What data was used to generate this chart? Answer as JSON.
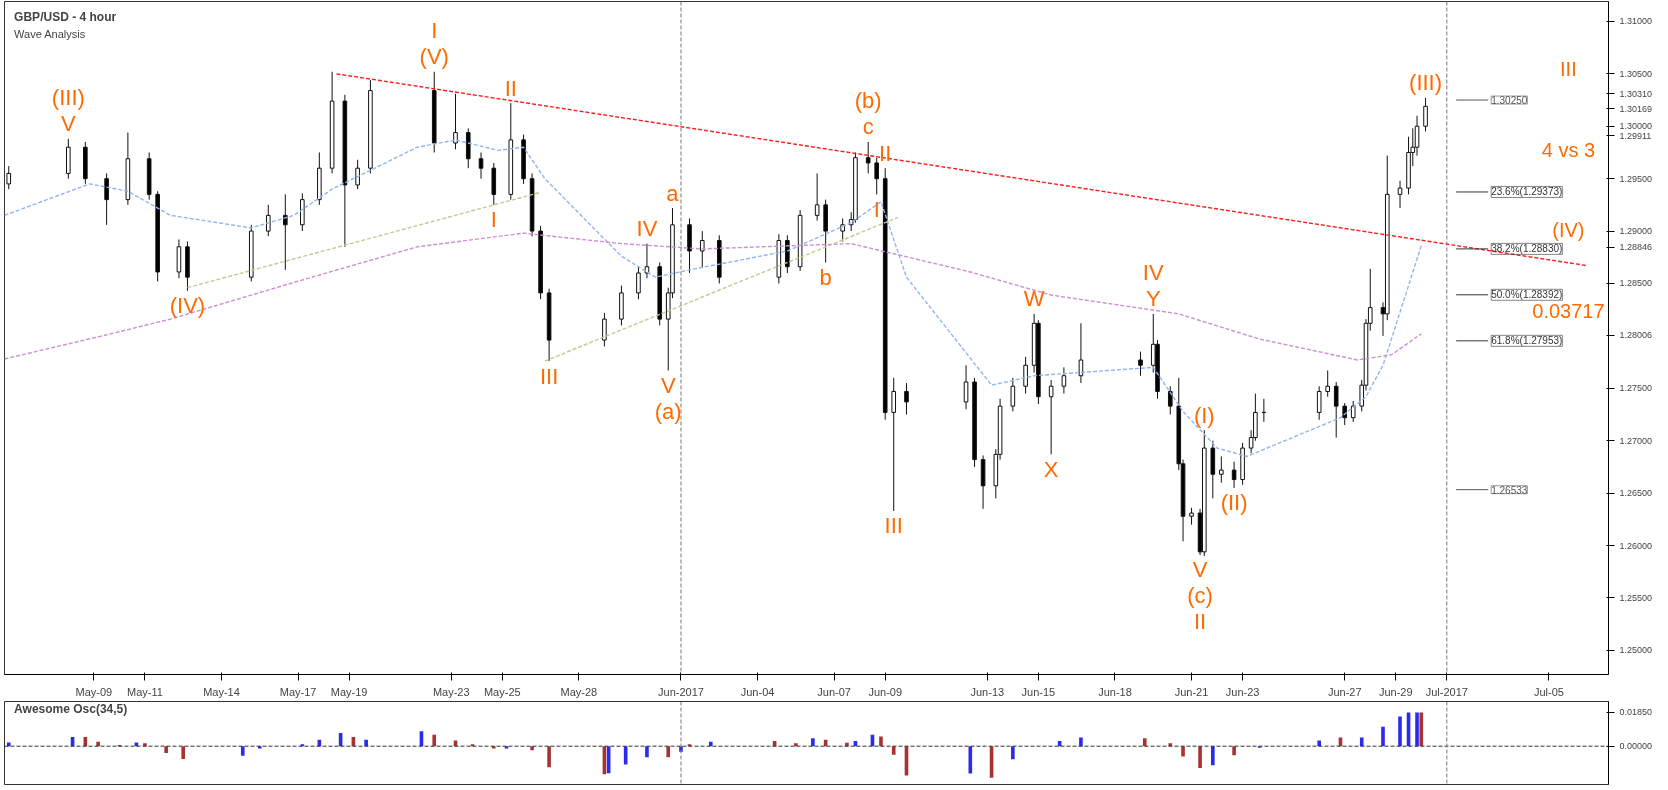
{
  "chart_data": [
    {
      "type": "candlestick",
      "title": "GBP/USD - 4 hour",
      "subtitle": "Wave Analysis",
      "xlim": [
        "2017-05-05T12:00",
        "2017-07-07T08:00"
      ],
      "ylim": [
        1.2477,
        1.3119
      ],
      "xticks": [
        {
          "value": "2017-05-09",
          "label": "May-09"
        },
        {
          "value": "2017-05-11",
          "label": "May-11"
        },
        {
          "value": "2017-05-14",
          "label": "May-14"
        },
        {
          "value": "2017-05-17",
          "label": "May-17"
        },
        {
          "value": "2017-05-19",
          "label": "May-19"
        },
        {
          "value": "2017-05-23",
          "label": "May-23"
        },
        {
          "value": "2017-05-25",
          "label": "May-25"
        },
        {
          "value": "2017-05-28",
          "label": "May-28"
        },
        {
          "value": "2017-06-01",
          "label": "Jun-2017"
        },
        {
          "value": "2017-06-04",
          "label": "Jun-04"
        },
        {
          "value": "2017-06-07",
          "label": "Jun-07"
        },
        {
          "value": "2017-06-09",
          "label": "Jun-09"
        },
        {
          "value": "2017-06-13",
          "label": "Jun-13"
        },
        {
          "value": "2017-06-15",
          "label": "Jun-15"
        },
        {
          "value": "2017-06-18",
          "label": "Jun-18"
        },
        {
          "value": "2017-06-21",
          "label": "Jun-21"
        },
        {
          "value": "2017-06-23",
          "label": "Jun-23"
        },
        {
          "value": "2017-06-27",
          "label": "Jun-27"
        },
        {
          "value": "2017-06-29",
          "label": "Jun-29"
        },
        {
          "value": "2017-07-01",
          "label": "Jul-2017"
        },
        {
          "value": "2017-07-05",
          "label": "Jul-05"
        }
      ],
      "yticks": [
        {
          "value": 1.25,
          "label": "1.25000"
        },
        {
          "value": 1.255,
          "label": "1.25500"
        },
        {
          "value": 1.26,
          "label": "1.26000"
        },
        {
          "value": 1.265,
          "label": "1.26500"
        },
        {
          "value": 1.27,
          "label": "1.27000"
        },
        {
          "value": 1.275,
          "label": "1.27500"
        },
        {
          "value": 1.285,
          "label": "1.28500"
        },
        {
          "value": 1.29,
          "label": "1.29000"
        },
        {
          "value": 1.295,
          "label": "1.29500"
        },
        {
          "value": 1.3,
          "label": "1.30000"
        },
        {
          "value": 1.305,
          "label": "1.30500"
        },
        {
          "value": 1.31,
          "label": "1.31000"
        },
        {
          "value": 1.3031,
          "label": "1.30310"
        },
        {
          "value": 1.30169,
          "label": "1.30169"
        },
        {
          "value": 1.29911,
          "label": "1.29911"
        },
        {
          "value": 1.28846,
          "label": "1.28846"
        },
        {
          "value": 1.28006,
          "label": "1.28006"
        }
      ],
      "x": [
        "2017-05-05T16:00",
        "2017-05-08T00:00",
        "2017-05-08T16:00",
        "2017-05-09T12:00",
        "2017-05-10T08:00",
        "2017-05-11T04:00",
        "2017-05-11T12:00",
        "2017-05-12T08:00",
        "2017-05-12T16:00",
        "2017-05-15T04:00",
        "2017-05-15T20:00",
        "2017-05-16T12:00",
        "2017-05-17T04:00",
        "2017-05-17T20:00",
        "2017-05-18T08:00",
        "2017-05-18T20:00",
        "2017-05-19T08:00",
        "2017-05-19T20:00",
        "2017-05-22T08:00",
        "2017-05-23T04:00",
        "2017-05-23T16:00",
        "2017-05-24T04:00",
        "2017-05-24T16:00",
        "2017-05-25T08:00",
        "2017-05-25T20:00",
        "2017-05-26T04:00",
        "2017-05-26T12:00",
        "2017-05-26T20:00",
        "2017-05-29T00:00",
        "2017-05-29T16:00",
        "2017-05-30T08:00",
        "2017-05-30T16:00",
        "2017-05-31T04:00",
        "2017-05-31T12:00",
        "2017-05-31T16:00",
        "2017-06-01T08:00",
        "2017-06-01T20:00",
        "2017-06-02T12:00",
        "2017-06-04T20:00",
        "2017-06-05T04:00",
        "2017-06-05T16:00",
        "2017-06-06T08:00",
        "2017-06-06T16:00",
        "2017-06-07T08:00",
        "2017-06-07T16:00",
        "2017-06-07T20:00",
        "2017-06-08T08:00",
        "2017-06-08T16:00",
        "2017-06-09T00:00",
        "2017-06-09T08:00",
        "2017-06-09T20:00",
        "2017-06-12T04:00",
        "2017-06-12T12:00",
        "2017-06-12T20:00",
        "2017-06-13T08:00",
        "2017-06-13T12:00",
        "2017-06-14T00:00",
        "2017-06-14T12:00",
        "2017-06-14T20:00",
        "2017-06-15T00:00",
        "2017-06-15T12:00",
        "2017-06-16T00:00",
        "2017-06-16T16:00",
        "2017-06-19T00:00",
        "2017-06-19T12:00",
        "2017-06-19T16:00",
        "2017-06-20T04:00",
        "2017-06-20T12:00",
        "2017-06-20T16:00",
        "2017-06-21T00:00",
        "2017-06-21T08:00",
        "2017-06-21T12:00",
        "2017-06-21T20:00",
        "2017-06-22T04:00",
        "2017-06-22T16:00",
        "2017-06-23T00:00",
        "2017-06-23T08:00",
        "2017-06-23T12:00",
        "2017-06-23T20:00",
        "2017-06-26T00:00",
        "2017-06-26T08:00",
        "2017-06-26T16:00",
        "2017-06-27T00:00",
        "2017-06-27T08:00",
        "2017-06-27T16:00",
        "2017-06-27T20:00",
        "2017-06-28T00:00",
        "2017-06-28T12:00",
        "2017-06-28T16:00",
        "2017-06-29T04:00",
        "2017-06-29T12:00",
        "2017-06-29T16:00",
        "2017-06-29T20:00",
        "2017-06-30T04:00"
      ],
      "ohlc": [
        [
          1.2945,
          1.2962,
          1.294,
          1.2955
        ],
        [
          1.2955,
          1.2988,
          1.295,
          1.298
        ],
        [
          1.298,
          1.2985,
          1.2945,
          1.295
        ],
        [
          1.295,
          1.2955,
          1.2906,
          1.293
        ],
        [
          1.293,
          1.2994,
          1.2925,
          1.2969
        ],
        [
          1.2969,
          1.2975,
          1.293,
          1.2935
        ],
        [
          1.2935,
          1.2938,
          1.2852,
          1.2861
        ],
        [
          1.2861,
          1.2892,
          1.2855,
          1.2885
        ],
        [
          1.2885,
          1.289,
          1.2843,
          1.2856
        ],
        [
          1.2856,
          1.2906,
          1.2852,
          1.29
        ],
        [
          1.29,
          1.2925,
          1.2895,
          1.2915
        ],
        [
          1.2915,
          1.2935,
          1.2863,
          1.2906
        ],
        [
          1.2906,
          1.2936,
          1.29,
          1.293
        ],
        [
          1.293,
          1.2975,
          1.2925,
          1.296
        ],
        [
          1.296,
          1.3052,
          1.2955,
          1.3024
        ],
        [
          1.3024,
          1.303,
          1.2885,
          1.2944
        ],
        [
          1.2944,
          1.2968,
          1.294,
          1.296
        ],
        [
          1.296,
          1.3044,
          1.2955,
          1.3034
        ],
        [
          1.3034,
          1.3052,
          1.2975,
          1.2984
        ],
        [
          1.2984,
          1.3031,
          1.2978,
          1.2994
        ],
        [
          1.2994,
          1.2998,
          1.296,
          1.2969
        ],
        [
          1.2969,
          1.2975,
          1.295,
          1.296
        ],
        [
          1.296,
          1.2965,
          1.2925,
          1.2935
        ],
        [
          1.2935,
          1.3022,
          1.293,
          1.2987
        ],
        [
          1.2987,
          1.2992,
          1.2945,
          1.295
        ],
        [
          1.295,
          1.2955,
          1.2895,
          1.29
        ],
        [
          1.29,
          1.2905,
          1.2835,
          1.2841
        ],
        [
          1.2841,
          1.2845,
          1.2776,
          1.2796
        ],
        [
          1.2796,
          1.2822,
          1.279,
          1.2816
        ],
        [
          1.2816,
          1.2848,
          1.281,
          1.2841
        ],
        [
          1.2841,
          1.2866,
          1.2835,
          1.286
        ],
        [
          1.286,
          1.2888,
          1.2855,
          1.2866
        ],
        [
          1.2866,
          1.287,
          1.281,
          1.2816
        ],
        [
          1.2816,
          1.2846,
          1.2767,
          1.2841
        ],
        [
          1.2841,
          1.2922,
          1.2836,
          1.2906
        ],
        [
          1.2906,
          1.2912,
          1.286,
          1.2881
        ],
        [
          1.2881,
          1.29,
          1.2865,
          1.2891
        ],
        [
          1.2891,
          1.2896,
          1.285,
          1.2856
        ],
        [
          1.2856,
          1.2897,
          1.285,
          1.2891
        ],
        [
          1.2891,
          1.2896,
          1.286,
          1.2866
        ],
        [
          1.2866,
          1.292,
          1.2862,
          1.2915
        ],
        [
          1.2915,
          1.2955,
          1.291,
          1.2925
        ],
        [
          1.2925,
          1.293,
          1.287,
          1.29
        ],
        [
          1.29,
          1.2912,
          1.289,
          1.2906
        ],
        [
          1.2906,
          1.2918,
          1.29,
          1.2911
        ],
        [
          1.2911,
          1.2975,
          1.2908,
          1.297
        ],
        [
          1.297,
          1.2985,
          1.2955,
          1.2965
        ],
        [
          1.2965,
          1.297,
          1.2935,
          1.295
        ],
        [
          1.295,
          1.296,
          1.272,
          1.2727
        ],
        [
          1.2727,
          1.276,
          1.2633,
          1.2747
        ],
        [
          1.2747,
          1.2755,
          1.2725,
          1.2737
        ],
        [
          1.2737,
          1.2772,
          1.273,
          1.2756
        ],
        [
          1.2756,
          1.276,
          1.2675,
          1.2682
        ],
        [
          1.2682,
          1.2686,
          1.2635,
          1.2657
        ],
        [
          1.2657,
          1.2692,
          1.2645,
          1.2687
        ],
        [
          1.2687,
          1.274,
          1.2682,
          1.2733
        ],
        [
          1.2733,
          1.276,
          1.2728,
          1.2752
        ],
        [
          1.2752,
          1.278,
          1.2745,
          1.2772
        ],
        [
          1.2772,
          1.2821,
          1.2765,
          1.2812
        ],
        [
          1.2812,
          1.2815,
          1.2735,
          1.2742
        ],
        [
          1.2742,
          1.2758,
          1.2687,
          1.2752
        ],
        [
          1.2752,
          1.277,
          1.2745,
          1.2762
        ],
        [
          1.2762,
          1.2812,
          1.2755,
          1.2777
        ],
        [
          1.2777,
          1.2785,
          1.2762,
          1.2772
        ],
        [
          1.2772,
          1.2821,
          1.2765,
          1.2792
        ],
        [
          1.2792,
          1.2796,
          1.274,
          1.2747
        ],
        [
          1.2747,
          1.2752,
          1.2725,
          1.2733
        ],
        [
          1.2733,
          1.276,
          1.2672,
          1.2678
        ],
        [
          1.2678,
          1.2682,
          1.2604,
          1.2628
        ],
        [
          1.2628,
          1.2636,
          1.262,
          1.2631
        ],
        [
          1.2631,
          1.2635,
          1.2591,
          1.2594
        ],
        [
          1.2594,
          1.271,
          1.259,
          1.2693
        ],
        [
          1.2693,
          1.27,
          1.2645,
          1.2668
        ],
        [
          1.2668,
          1.2685,
          1.266,
          1.2672
        ],
        [
          1.2672,
          1.268,
          1.2655,
          1.2663
        ],
        [
          1.2663,
          1.2698,
          1.2658,
          1.2693
        ],
        [
          1.2693,
          1.271,
          1.2688,
          1.2703
        ],
        [
          1.2703,
          1.2745,
          1.27,
          1.2727
        ],
        [
          1.2727,
          1.274,
          1.2718,
          1.2727
        ],
        [
          1.2727,
          1.2752,
          1.272,
          1.2747
        ],
        [
          1.2747,
          1.2767,
          1.2742,
          1.2752
        ],
        [
          1.2752,
          1.2756,
          1.2703,
          1.2733
        ],
        [
          1.2733,
          1.2736,
          1.2715,
          1.2722
        ],
        [
          1.2722,
          1.2738,
          1.2718,
          1.2733
        ],
        [
          1.2733,
          1.2758,
          1.2728,
          1.2753
        ],
        [
          1.2753,
          1.2816,
          1.2748,
          1.2812
        ],
        [
          1.2812,
          1.2864,
          1.2805,
          1.2827
        ],
        [
          1.2827,
          1.2832,
          1.28,
          1.2821
        ],
        [
          1.2821,
          1.2972,
          1.2815,
          1.2935
        ],
        [
          1.2935,
          1.2948,
          1.2922,
          1.2941
        ],
        [
          1.2941,
          1.299,
          1.2935,
          1.2975
        ],
        [
          1.2975,
          1.2998,
          1.2962,
          1.298
        ],
        [
          1.298,
          1.301,
          1.2972,
          1.3
        ],
        [
          1.3,
          1.3027,
          1.2995,
          1.3019
        ]
      ],
      "series": [
        {
          "type": "line",
          "color": "#ff1a1a",
          "line_style": "dashed",
          "x": [
            "2017-05-18T12:00",
            "2017-07-06T12:00"
          ],
          "values": [
            1.305,
            1.2867
          ]
        },
        {
          "type": "line",
          "color": "#93b4ee",
          "line_style": "dashed",
          "x": [
            "2017-05-05T12:00",
            "2017-05-08T20:00",
            "2017-05-10T08:00",
            "2017-05-12T00:00",
            "2017-05-15T04:00",
            "2017-05-16T20:00",
            "2017-05-18T08:00",
            "2017-05-21T16:00",
            "2017-05-23T04:00",
            "2017-05-24T20:00",
            "2017-05-25T20:00",
            "2017-05-26T16:00",
            "2017-05-29T16:00",
            "2017-05-31T00:00",
            "2017-06-01T08:00",
            "2017-06-05T04:00",
            "2017-06-07T16:00",
            "2017-06-08T20:00",
            "2017-06-09T20:00",
            "2017-06-13T04:00",
            "2017-06-14T20:00",
            "2017-06-19T12:00",
            "2017-06-20T16:00",
            "2017-06-22T00:00",
            "2017-06-23T04:00",
            "2017-06-26T20:00",
            "2017-06-27T20:00",
            "2017-06-28T12:00",
            "2017-06-30T00:00"
          ],
          "values": [
            1.2915,
            1.2945,
            1.2938,
            1.2915,
            1.2903,
            1.2915,
            1.294,
            1.298,
            1.2987,
            1.2977,
            1.298,
            1.295,
            1.2876,
            1.2856,
            1.2863,
            1.2881,
            1.2908,
            1.2928,
            1.2856,
            1.2753,
            1.2762,
            1.277,
            1.2728,
            1.2693,
            1.2685,
            1.2722,
            1.2742,
            1.2772,
            1.2886
          ]
        },
        {
          "type": "line",
          "color": "#cc8fd2",
          "line_style": "dashed",
          "x": [
            "2017-05-05T12:00",
            "2017-05-09T12:00",
            "2017-05-12T00:00",
            "2017-05-16T20:00",
            "2017-05-21T16:00",
            "2017-05-25T20:00",
            "2017-05-29T16:00",
            "2017-06-01T20:00",
            "2017-06-07T16:00",
            "2017-06-12T08:00",
            "2017-06-15T12:00",
            "2017-06-20T12:00",
            "2017-06-23T16:00",
            "2017-06-27T12:00",
            "2017-06-28T20:00",
            "2017-06-30T00:00"
          ],
          "values": [
            1.2778,
            1.2801,
            1.2816,
            1.2851,
            1.2885,
            1.2898,
            1.2888,
            1.2883,
            1.2888,
            1.2861,
            1.2839,
            1.2821,
            1.2797,
            1.2777,
            1.2782,
            1.2802
          ]
        },
        {
          "type": "line",
          "color": "#c8c890",
          "line_style": "dashed",
          "x": [
            "2017-05-12T16:00",
            "2017-05-26T12:00"
          ],
          "values": [
            1.2846,
            1.2937
          ]
        },
        {
          "type": "line",
          "color": "#c8c890",
          "line_style": "dashed",
          "x": [
            "2017-05-26T16:00",
            "2017-06-09T12:00"
          ],
          "values": [
            1.2776,
            1.2913
          ]
        }
      ],
      "ref_lines": [
        {
          "axis": "x",
          "value": "2017-06-01",
          "color": "#777777",
          "line_style": "dashed"
        },
        {
          "axis": "x",
          "value": "2017-07-01",
          "color": "#777777",
          "line_style": "dashed"
        },
        {
          "axis": "y",
          "value": 1.3025,
          "label": "1.30250",
          "color": "#555555"
        },
        {
          "axis": "y",
          "value": 1.26533,
          "label": "1.26533",
          "color": "#555555"
        },
        {
          "axis": "y",
          "value": 1.29373,
          "label": "23.6%(1.29373)",
          "color": "#333333"
        },
        {
          "axis": "y",
          "value": 1.2883,
          "label": "38.2%(1.28830)",
          "color": "#333333"
        },
        {
          "axis": "y",
          "value": 1.28392,
          "label": "50.0%(1.28392)",
          "color": "#333333"
        },
        {
          "axis": "y",
          "value": 1.27953,
          "label": "61.8%(1.27953)",
          "color": "#333333"
        }
      ],
      "annotations": [
        {
          "text": "V",
          "x": "2017-05-08T00:00",
          "y": 1.2988
        },
        {
          "text": "(III)",
          "x": "2017-05-08T00:00",
          "y": 1.2988
        },
        {
          "text": "(IV)",
          "x": "2017-05-12T16:00",
          "y": 1.2843
        },
        {
          "text": "(V)",
          "x": "2017-05-22T08:00",
          "y": 1.3052
        },
        {
          "text": "I",
          "x": "2017-05-22T08:00",
          "y": 1.3052
        },
        {
          "text": "II",
          "x": "2017-05-25T08:00",
          "y": 1.3022
        },
        {
          "text": "I",
          "x": "2017-05-24T16:00",
          "y": 1.2925
        },
        {
          "text": "III",
          "x": "2017-05-26T20:00",
          "y": 1.2776
        },
        {
          "text": "IV",
          "x": "2017-05-30T16:00",
          "y": 1.2888
        },
        {
          "text": "a",
          "x": "2017-05-31T16:00",
          "y": 1.2922
        },
        {
          "text": "V",
          "x": "2017-05-31T12:00",
          "y": 1.2767
        },
        {
          "text": "(a)",
          "x": "2017-05-31T12:00",
          "y": 1.2767
        },
        {
          "text": "b",
          "x": "2017-06-06T16:00",
          "y": 1.287
        },
        {
          "text": "c",
          "x": "2017-06-08T08:00",
          "y": 1.2985
        },
        {
          "text": "(b)",
          "x": "2017-06-08T08:00",
          "y": 1.2985
        },
        {
          "text": "II",
          "x": "2017-06-09T00:00",
          "y": 1.296
        },
        {
          "text": "I",
          "x": "2017-06-08T16:00",
          "y": 1.2935
        },
        {
          "text": "III",
          "x": "2017-06-09T08:00",
          "y": 1.2633
        },
        {
          "text": "W",
          "x": "2017-06-14T20:00",
          "y": 1.2821
        },
        {
          "text": "X",
          "x": "2017-06-15T12:00",
          "y": 1.2687
        },
        {
          "text": "Y",
          "x": "2017-06-19T12:00",
          "y": 1.2821
        },
        {
          "text": "IV",
          "x": "2017-06-19T12:00",
          "y": 1.2821
        },
        {
          "text": "(I)",
          "x": "2017-06-21T12:00",
          "y": 1.271
        },
        {
          "text": "(II)",
          "x": "2017-06-22T16:00",
          "y": 1.2655
        },
        {
          "text": "V",
          "x": "2017-06-21T08:00",
          "y": 1.2591
        },
        {
          "text": "(c)",
          "x": "2017-06-21T08:00",
          "y": 1.2591
        },
        {
          "text": "II",
          "x": "2017-06-21T08:00",
          "y": 1.2591
        },
        {
          "text": "(III)",
          "x": "2017-06-30T04:00",
          "y": 1.3027
        },
        "III",
        "4 vs 3",
        "(IV)",
        "0.03717"
      ]
    },
    {
      "type": "bar",
      "title": "Awesome Osc(34,5)",
      "tick_labels": "y",
      "xlim": [
        "2017-05-05T12:00",
        "2017-07-07T08:00"
      ],
      "ylim": [
        -0.021,
        0.0245
      ],
      "yticks": [
        {
          "value": 0,
          "label": "0.00000"
        },
        {
          "value": 0.0185,
          "label": "0.01850"
        }
      ],
      "x": [
        "2017-05-05T16:00",
        "2017-05-08T04:00",
        "2017-05-08T16:00",
        "2017-05-09T04:00",
        "2017-05-10T00:00",
        "2017-05-10T16:00",
        "2017-05-11T00:00",
        "2017-05-11T20:00",
        "2017-05-12T12:00",
        "2017-05-14T20:00",
        "2017-05-15T12:00",
        "2017-05-16T12:00",
        "2017-05-17T04:00",
        "2017-05-17T20:00",
        "2017-05-18T16:00",
        "2017-05-19T04:00",
        "2017-05-19T16:00",
        "2017-05-21T20:00",
        "2017-05-22T08:00",
        "2017-05-23T04:00",
        "2017-05-23T20:00",
        "2017-05-24T16:00",
        "2017-05-25T04:00",
        "2017-05-26T04:00",
        "2017-05-26T20:00",
        "2017-05-29T00:00",
        "2017-05-29T04:00",
        "2017-05-29T20:00",
        "2017-05-30T16:00",
        "2017-05-31T12:00",
        "2017-06-01T00:00",
        "2017-06-01T08:00",
        "2017-06-02T04:00",
        "2017-06-04T16:00",
        "2017-06-05T12:00",
        "2017-06-06T04:00",
        "2017-06-06T16:00",
        "2017-06-07T12:00",
        "2017-06-07T20:00",
        "2017-06-08T12:00",
        "2017-06-08T20:00",
        "2017-06-09T08:00",
        "2017-06-09T20:00",
        "2017-06-12T08:00",
        "2017-06-13T04:00",
        "2017-06-14T00:00",
        "2017-06-14T20:00",
        "2017-06-15T20:00",
        "2017-06-16T16:00",
        "2017-06-19T04:00",
        "2017-06-20T04:00",
        "2017-06-20T16:00",
        "2017-06-21T08:00",
        "2017-06-21T20:00",
        "2017-06-22T16:00",
        "2017-06-23T16:00",
        "2017-06-26T00:00",
        "2017-06-26T20:00",
        "2017-06-27T16:00",
        "2017-06-28T12:00",
        "2017-06-29T04:00",
        "2017-06-29T12:00",
        "2017-06-29T20:00",
        "2017-06-30T00:00"
      ],
      "values": [
        0.002,
        0.005,
        0.005,
        0.0025,
        0.0006,
        0.002,
        0.0016,
        -0.0038,
        -0.007,
        -0.0053,
        -0.0013,
        0,
        0.001,
        0.0035,
        0.0072,
        0.005,
        0.0035,
        0.0082,
        0.0063,
        0.0031,
        0.001,
        -0.0013,
        -0.0013,
        -0.0022,
        -0.0116,
        -0.0154,
        -0.0148,
        -0.01,
        -0.006,
        -0.006,
        -0.0031,
        0.001,
        0.0025,
        0.0028,
        0.0016,
        0.0044,
        0.0035,
        0.0019,
        0.0028,
        0.0063,
        0.0053,
        -0.0047,
        -0.016,
        -0.015,
        -0.0173,
        -0.0072,
        0,
        0.0028,
        0.0047,
        0.0044,
        0.0016,
        -0.0057,
        -0.012,
        -0.0104,
        -0.005,
        -0.0009,
        0.0031,
        0.0047,
        0.0047,
        0.0107,
        0.0163,
        0.0185,
        0.0185,
        0.0185
      ],
      "colors": [
        "#2a2af0",
        "#2a2af0",
        "#a83232",
        "#a83232",
        "#a83232",
        "#2a2af0",
        "#a83232",
        "#a83232",
        "#a83232",
        "#2a2af0",
        "#2a2af0",
        "#a83232",
        "#2a2af0",
        "#2a2af0",
        "#2a2af0",
        "#a83232",
        "#2a2af0",
        "#2a2af0",
        "#a83232",
        "#a83232",
        "#a83232",
        "#a83232",
        "#2a2af0",
        "#a83232",
        "#a83232",
        "#a83232",
        "#2a2af0",
        "#2a2af0",
        "#2a2af0",
        "#a83232",
        "#2a2af0",
        "#a83232",
        "#2a2af0",
        "#a83232",
        "#a83232",
        "#2a2af0",
        "#a83232",
        "#a83232",
        "#2a2af0",
        "#2a2af0",
        "#a83232",
        "#a83232",
        "#a83232",
        "#2a2af0",
        "#a83232",
        "#2a2af0",
        "#a83232",
        "#2a2af0",
        "#2a2af0",
        "#a83232",
        "#a83232",
        "#a83232",
        "#a83232",
        "#2a2af0",
        "#a83232",
        "#2a2af0",
        "#2a2af0",
        "#a83232",
        "#2a2af0",
        "#2a2af0",
        "#2a2af0",
        "#2a2af0",
        "#2a2af0",
        "#a83232"
      ],
      "ref_lines": [
        {
          "axis": "y",
          "value": 0,
          "color": "#333333",
          "line_style": "dashed"
        },
        {
          "axis": "x",
          "value": "2017-06-01",
          "color": "#777777",
          "line_style": "dashed"
        },
        {
          "axis": "x",
          "value": "2017-07-01",
          "color": "#777777",
          "line_style": "dashed"
        }
      ]
    }
  ]
}
